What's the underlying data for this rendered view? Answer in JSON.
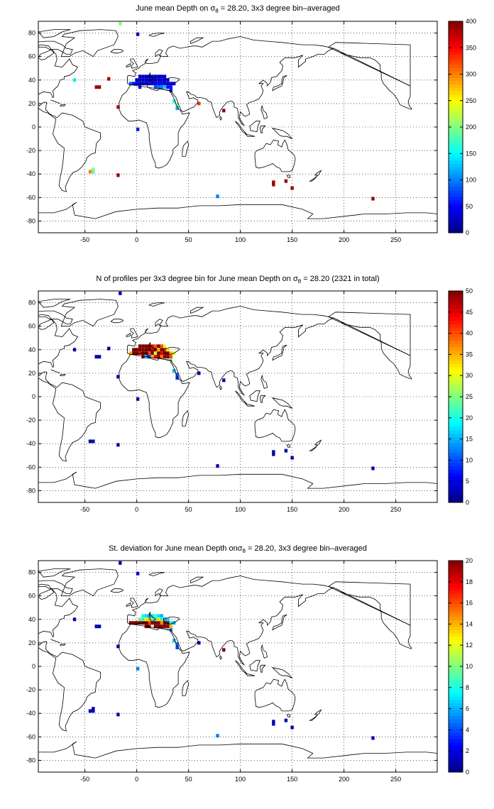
{
  "colors": {
    "colormap": "jet",
    "colormap_stops": [
      "#00008f",
      "#0000ff",
      "#00ffff",
      "#ffff00",
      "#ff0000",
      "#800000"
    ],
    "land_outline": "#000000",
    "grid": "#000000"
  },
  "chart_data": [
    {
      "type": "heatmap",
      "title_prefix": "June mean Depth on ",
      "title_symbol": "σ",
      "title_subscript": "θ",
      "title_suffix": " = 28.20, 3x3 degree bin–averaged",
      "xlim": [
        -95,
        290
      ],
      "ylim": [
        -90,
        90
      ],
      "xticks": [
        -50,
        0,
        50,
        100,
        150,
        200,
        250
      ],
      "yticks": [
        -80,
        -60,
        -40,
        -20,
        0,
        20,
        40,
        60,
        80
      ],
      "grid": "dotted",
      "colorbar": {
        "min": 0,
        "max": 400,
        "ticks": [
          0,
          50,
          100,
          150,
          200,
          250,
          300,
          350,
          400
        ]
      },
      "cells": [
        [
          -16,
          88,
          200
        ],
        [
          1,
          79,
          20
        ],
        [
          3,
          43,
          25
        ],
        [
          6,
          43,
          25
        ],
        [
          9,
          43,
          25
        ],
        [
          12,
          43,
          25
        ],
        [
          15,
          43,
          25
        ],
        [
          18,
          43,
          25
        ],
        [
          21,
          43,
          25
        ],
        [
          24,
          43,
          30
        ],
        [
          27,
          43,
          40
        ],
        [
          0,
          40,
          30
        ],
        [
          3,
          40,
          30
        ],
        [
          6,
          40,
          30
        ],
        [
          9,
          40,
          30
        ],
        [
          12,
          40,
          30
        ],
        [
          15,
          40,
          30
        ],
        [
          18,
          40,
          35
        ],
        [
          21,
          40,
          35
        ],
        [
          24,
          40,
          40
        ],
        [
          27,
          40,
          40
        ],
        [
          30,
          40,
          40
        ],
        [
          -6,
          37,
          90
        ],
        [
          -3,
          37,
          60
        ],
        [
          0,
          37,
          50
        ],
        [
          3,
          37,
          40
        ],
        [
          6,
          37,
          35
        ],
        [
          9,
          37,
          35
        ],
        [
          12,
          37,
          40
        ],
        [
          15,
          37,
          40
        ],
        [
          18,
          37,
          40
        ],
        [
          21,
          37,
          40
        ],
        [
          24,
          37,
          45
        ],
        [
          27,
          37,
          45
        ],
        [
          30,
          37,
          45
        ],
        [
          33,
          37,
          45
        ],
        [
          36,
          37,
          50
        ],
        [
          3,
          34,
          50
        ],
        [
          18,
          34,
          80
        ],
        [
          21,
          34,
          90
        ],
        [
          24,
          34,
          100
        ],
        [
          27,
          34,
          130
        ],
        [
          30,
          34,
          50
        ],
        [
          33,
          34,
          60
        ],
        [
          33,
          31,
          50
        ],
        [
          36,
          22,
          150
        ],
        [
          39,
          19,
          200
        ],
        [
          39,
          16,
          120
        ],
        [
          -60,
          40,
          150
        ],
        [
          -27,
          41,
          380
        ],
        [
          -36,
          34,
          390
        ],
        [
          -39,
          34,
          390
        ],
        [
          -18,
          17,
          380
        ],
        [
          1,
          -2,
          60
        ],
        [
          60,
          20,
          330
        ],
        [
          84,
          14,
          390
        ],
        [
          -45,
          -38,
          300
        ],
        [
          -42,
          -38,
          180
        ],
        [
          -42,
          -36,
          200
        ],
        [
          -18,
          -41,
          390
        ],
        [
          132,
          -47,
          390
        ],
        [
          132,
          -49,
          390
        ],
        [
          144,
          -46,
          390
        ],
        [
          150,
          -52,
          390
        ],
        [
          78,
          -59,
          100
        ],
        [
          228,
          -61,
          390
        ]
      ]
    },
    {
      "type": "heatmap",
      "title_prefix": "N of profiles per 3x3 degree bin for June mean Depth on ",
      "title_symbol": "σ",
      "title_subscript": "θ",
      "title_suffix": " = 28.20 (2321 in total)",
      "xlim": [
        -95,
        290
      ],
      "ylim": [
        -90,
        90
      ],
      "xticks": [
        -50,
        0,
        50,
        100,
        150,
        200,
        250
      ],
      "yticks": [
        -80,
        -60,
        -40,
        -20,
        0,
        20,
        40,
        60,
        80
      ],
      "grid": "dotted",
      "colorbar": {
        "min": 0,
        "max": 50,
        "ticks": [
          0,
          5,
          10,
          15,
          20,
          25,
          30,
          35,
          40,
          45,
          50
        ]
      },
      "cells": [
        [
          -16,
          88,
          2
        ],
        [
          3,
          43,
          50
        ],
        [
          6,
          43,
          50
        ],
        [
          9,
          43,
          50
        ],
        [
          12,
          43,
          50
        ],
        [
          15,
          43,
          45
        ],
        [
          18,
          43,
          40
        ],
        [
          21,
          43,
          50
        ],
        [
          24,
          43,
          40
        ],
        [
          27,
          43,
          30
        ],
        [
          -3,
          40,
          50
        ],
        [
          0,
          40,
          50
        ],
        [
          3,
          40,
          50
        ],
        [
          6,
          40,
          50
        ],
        [
          9,
          40,
          50
        ],
        [
          12,
          40,
          50
        ],
        [
          15,
          40,
          45
        ],
        [
          18,
          40,
          50
        ],
        [
          21,
          40,
          35
        ],
        [
          24,
          40,
          50
        ],
        [
          27,
          40,
          42
        ],
        [
          30,
          40,
          30
        ],
        [
          -6,
          37,
          35
        ],
        [
          -3,
          37,
          50
        ],
        [
          0,
          37,
          50
        ],
        [
          3,
          37,
          45
        ],
        [
          6,
          37,
          50
        ],
        [
          9,
          37,
          50
        ],
        [
          12,
          37,
          40
        ],
        [
          15,
          37,
          50
        ],
        [
          18,
          37,
          28
        ],
        [
          21,
          37,
          50
        ],
        [
          24,
          37,
          45
        ],
        [
          27,
          37,
          50
        ],
        [
          30,
          37,
          50
        ],
        [
          33,
          37,
          35
        ],
        [
          36,
          37,
          30
        ],
        [
          6,
          34,
          50
        ],
        [
          9,
          34,
          15
        ],
        [
          12,
          34,
          8
        ],
        [
          15,
          34,
          35
        ],
        [
          18,
          34,
          45
        ],
        [
          21,
          34,
          50
        ],
        [
          24,
          34,
          38
        ],
        [
          27,
          34,
          50
        ],
        [
          30,
          34,
          50
        ],
        [
          33,
          34,
          40
        ],
        [
          33,
          31,
          25
        ],
        [
          36,
          22,
          15
        ],
        [
          39,
          19,
          12
        ],
        [
          39,
          16,
          8
        ],
        [
          -60,
          40,
          2
        ],
        [
          -27,
          41,
          2
        ],
        [
          -36,
          34,
          2
        ],
        [
          -39,
          34,
          2
        ],
        [
          -18,
          17,
          2
        ],
        [
          1,
          -2,
          2
        ],
        [
          60,
          20,
          2
        ],
        [
          84,
          14,
          2
        ],
        [
          -45,
          -38,
          2
        ],
        [
          -42,
          -38,
          2
        ],
        [
          -18,
          -41,
          2
        ],
        [
          132,
          -47,
          2
        ],
        [
          132,
          -49,
          2
        ],
        [
          144,
          -46,
          2
        ],
        [
          150,
          -52,
          2
        ],
        [
          78,
          -59,
          2
        ],
        [
          228,
          -61,
          2
        ]
      ]
    },
    {
      "type": "heatmap",
      "title_prefix": "St. deviation for June mean Depth on",
      "title_symbol": "σ",
      "title_subscript": "θ",
      "title_suffix": " = 28.20, 3x3 degree bin–averaged",
      "xlim": [
        -95,
        290
      ],
      "ylim": [
        -90,
        90
      ],
      "xticks": [
        -50,
        0,
        50,
        100,
        150,
        200,
        250
      ],
      "yticks": [
        -80,
        -60,
        -40,
        -20,
        0,
        20,
        40,
        60,
        80
      ],
      "grid": "dotted",
      "colorbar": {
        "min": 0,
        "max": 20,
        "ticks": [
          0,
          2,
          4,
          6,
          8,
          10,
          12,
          14,
          16,
          18,
          20
        ]
      },
      "cells": [
        [
          -16,
          88,
          1
        ],
        [
          1,
          79,
          2
        ],
        [
          6,
          43,
          8
        ],
        [
          9,
          43,
          7
        ],
        [
          12,
          43,
          6
        ],
        [
          15,
          43,
          7
        ],
        [
          18,
          43,
          9
        ],
        [
          21,
          43,
          7
        ],
        [
          24,
          43,
          6
        ],
        [
          3,
          40,
          10
        ],
        [
          6,
          40,
          9
        ],
        [
          9,
          40,
          12
        ],
        [
          12,
          40,
          14
        ],
        [
          15,
          40,
          10
        ],
        [
          18,
          40,
          8
        ],
        [
          21,
          40,
          13
        ],
        [
          24,
          40,
          9
        ],
        [
          27,
          40,
          6
        ],
        [
          30,
          40,
          7
        ],
        [
          -6,
          37,
          20
        ],
        [
          -3,
          37,
          20
        ],
        [
          0,
          37,
          20
        ],
        [
          3,
          37,
          20
        ],
        [
          6,
          37,
          20
        ],
        [
          9,
          37,
          20
        ],
        [
          12,
          37,
          16
        ],
        [
          15,
          37,
          20
        ],
        [
          18,
          37,
          20
        ],
        [
          21,
          37,
          20
        ],
        [
          24,
          37,
          15
        ],
        [
          27,
          37,
          20
        ],
        [
          30,
          37,
          20
        ],
        [
          33,
          37,
          8
        ],
        [
          36,
          37,
          6
        ],
        [
          9,
          34,
          20
        ],
        [
          12,
          34,
          20
        ],
        [
          18,
          34,
          20
        ],
        [
          21,
          34,
          20
        ],
        [
          24,
          34,
          20
        ],
        [
          27,
          34,
          20
        ],
        [
          30,
          34,
          20
        ],
        [
          33,
          34,
          14
        ],
        [
          33,
          31,
          5
        ],
        [
          36,
          22,
          6
        ],
        [
          39,
          19,
          5
        ],
        [
          39,
          16,
          4
        ],
        [
          -60,
          40,
          1
        ],
        [
          -36,
          34,
          1
        ],
        [
          -39,
          34,
          1
        ],
        [
          -18,
          17,
          1
        ],
        [
          1,
          -2,
          5
        ],
        [
          60,
          20,
          1
        ],
        [
          84,
          14,
          20
        ],
        [
          -45,
          -38,
          1
        ],
        [
          -42,
          -38,
          1
        ],
        [
          -42,
          -36,
          1
        ],
        [
          -18,
          -41,
          1
        ],
        [
          132,
          -47,
          1
        ],
        [
          132,
          -49,
          1
        ],
        [
          144,
          -46,
          1
        ],
        [
          150,
          -52,
          1
        ],
        [
          78,
          -59,
          5
        ],
        [
          228,
          -61,
          1
        ]
      ]
    }
  ]
}
